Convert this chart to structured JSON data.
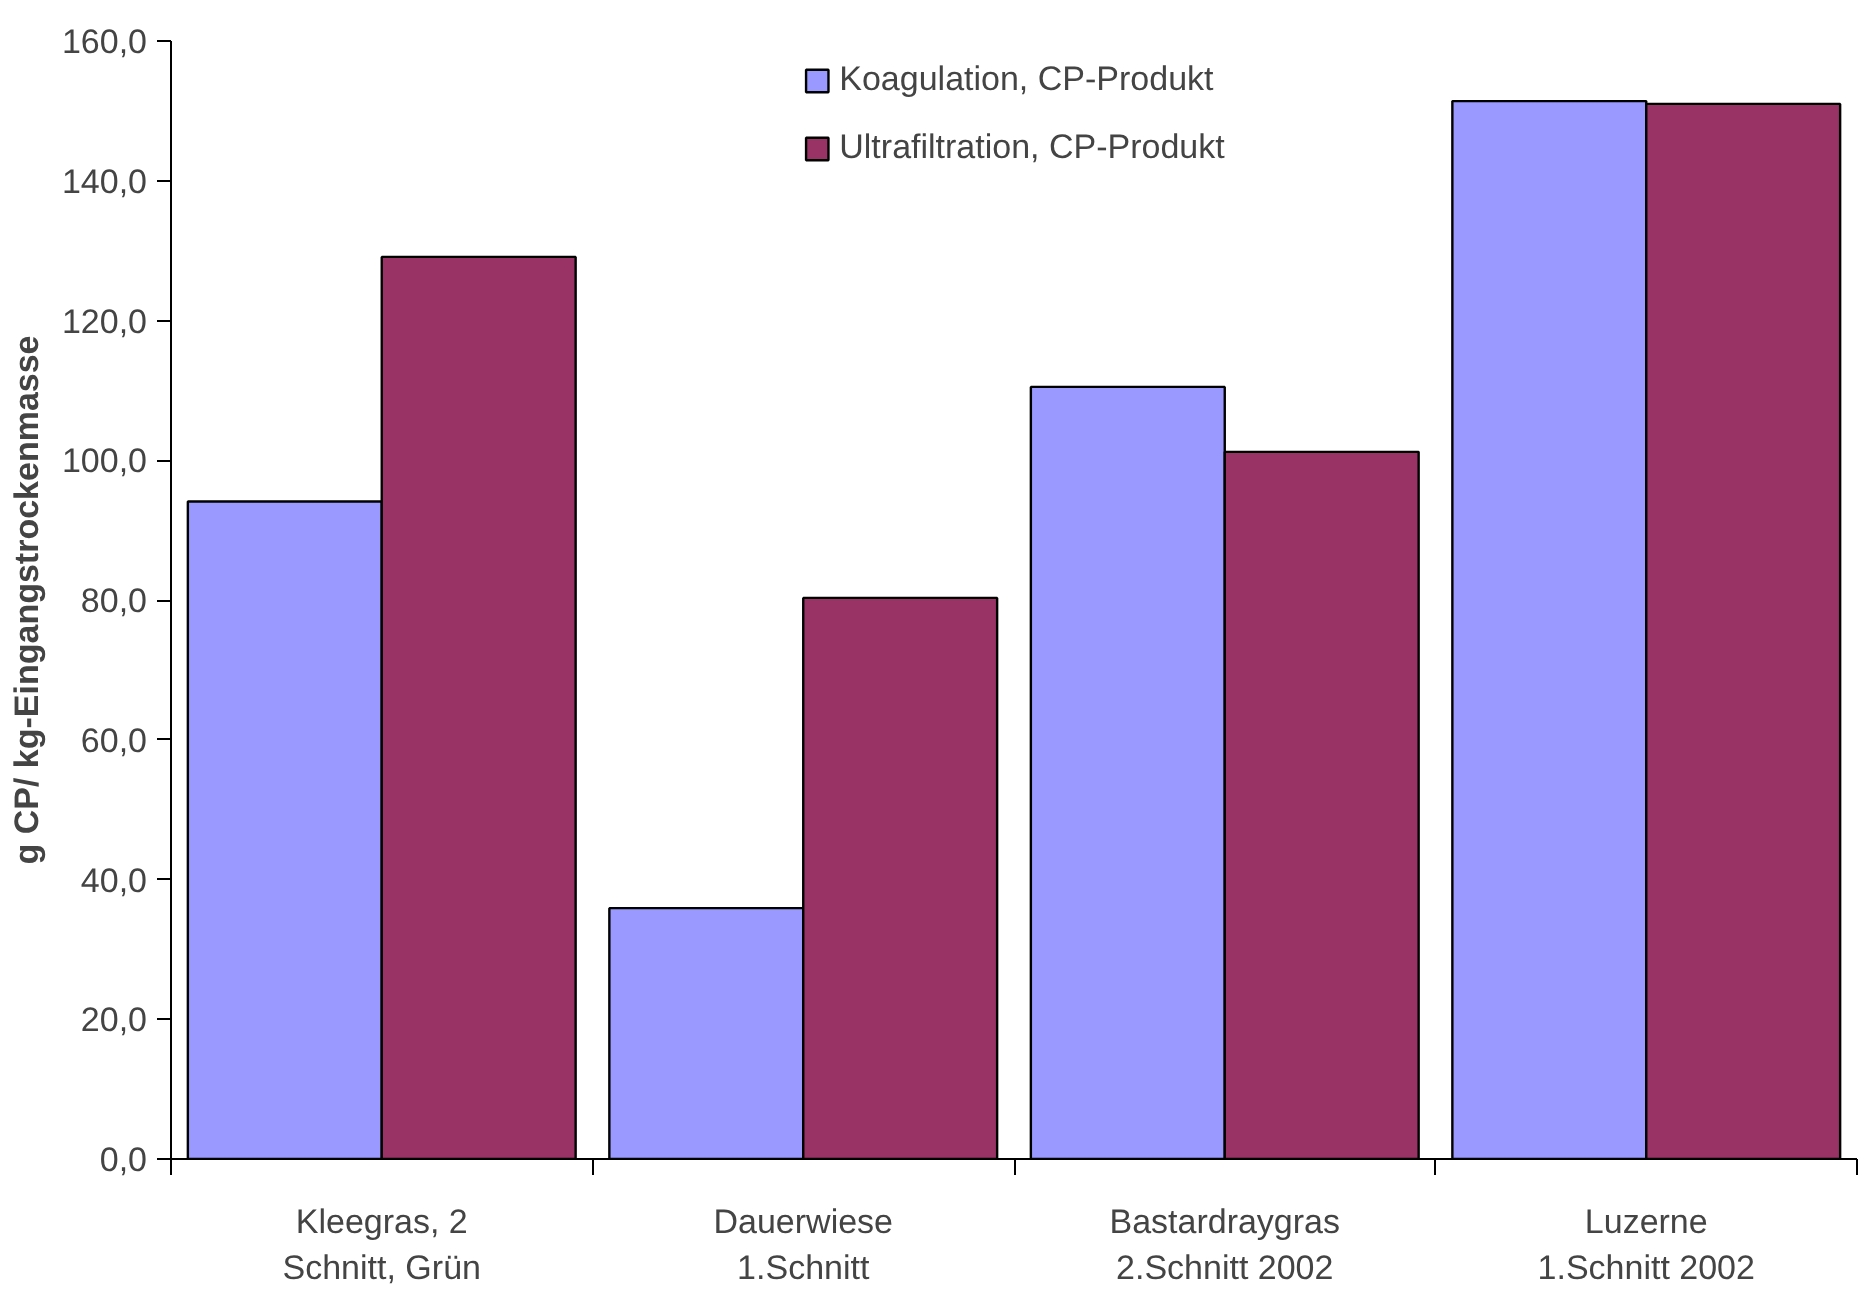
{
  "chart_data": {
    "type": "bar",
    "ylabel": "g CP/ kg-Eingangstrockenmasse",
    "categories": [
      "Kleegras, 2 Schnitt, Grün",
      "Dauerwiese 1.Schnitt",
      "Bastardraygras 2.Schnitt 2002",
      "Luzerne 1.Schnitt 2002"
    ],
    "series": [
      {
        "name": "Koagulation, CP-Produkt",
        "color": "#9999ff",
        "values": [
          94.1,
          35.9,
          110.5,
          151.4
        ]
      },
      {
        "name": "Ultrafiltration, CP-Produkt",
        "color": "#993366",
        "values": [
          129.1,
          80.3,
          101.2,
          151.0
        ]
      }
    ],
    "ylim": [
      0,
      160
    ],
    "yticks": [
      {
        "value": 0,
        "label": "0,0"
      },
      {
        "value": 20,
        "label": "20,0"
      },
      {
        "value": 40,
        "label": "40,0"
      },
      {
        "value": 60,
        "label": "60,0"
      },
      {
        "value": 80,
        "label": "80,0"
      },
      {
        "value": 100,
        "label": "100,0"
      },
      {
        "value": 120,
        "label": "120,0"
      },
      {
        "value": 140,
        "label": "140,0"
      },
      {
        "value": 160,
        "label": "160,0"
      }
    ],
    "grid": false,
    "legend": "top"
  }
}
